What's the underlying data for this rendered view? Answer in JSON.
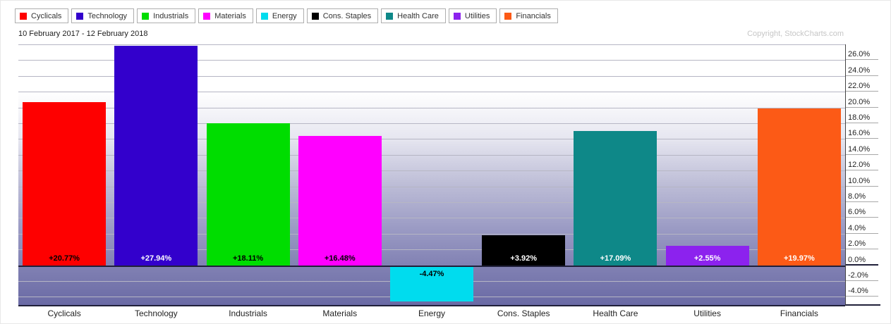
{
  "header": {
    "date_range": "10 February 2017 - 12 February 2018",
    "copyright": "Copyright, StockCharts.com"
  },
  "legend": {
    "position": "top",
    "items": [
      {
        "label": "Cyclicals",
        "color": "#fe0000"
      },
      {
        "label": "Technology",
        "color": "#3300cc"
      },
      {
        "label": "Industrials",
        "color": "#00dd00"
      },
      {
        "label": "Materials",
        "color": "#ff00ff"
      },
      {
        "label": "Energy",
        "color": "#00dcee"
      },
      {
        "label": "Cons. Staples",
        "color": "#000000"
      },
      {
        "label": "Health Care",
        "color": "#0e8888"
      },
      {
        "label": "Utilities",
        "color": "#8c22ee"
      },
      {
        "label": "Financials",
        "color": "#fc5a16"
      }
    ]
  },
  "chart_data": {
    "type": "bar",
    "title": "10 February 2017 - 12 February 2018",
    "categories": [
      "Cyclicals",
      "Technology",
      "Industrials",
      "Materials",
      "Energy",
      "Cons. Staples",
      "Health Care",
      "Utilities",
      "Financials"
    ],
    "values": [
      20.77,
      27.94,
      18.11,
      16.48,
      -4.47,
      3.92,
      17.09,
      2.55,
      19.97
    ],
    "bar_labels": [
      "+20.77%",
      "+27.94%",
      "+18.11%",
      "+16.48%",
      "-4.47%",
      "+3.92%",
      "+17.09%",
      "+2.55%",
      "+19.97%"
    ],
    "bar_colors": [
      "#fe0000",
      "#3300cc",
      "#00dd00",
      "#ff00ff",
      "#00dcee",
      "#000000",
      "#0e8888",
      "#8c22ee",
      "#fc5a16"
    ],
    "bar_label_text_colors": [
      "#000000",
      "#ffffff",
      "#000000",
      "#000000",
      "#000000",
      "#ffffff",
      "#ffffff",
      "#ffffff",
      "#ffffff"
    ],
    "xlabel": "",
    "ylabel": "",
    "ylim": [
      -4.95,
      28.0
    ],
    "grid": true,
    "legend_position": "top",
    "axis_side": "right",
    "y_ticks": [
      {
        "value": 26,
        "label": "26.0%"
      },
      {
        "value": 24,
        "label": "24.0%"
      },
      {
        "value": 22,
        "label": "22.0%"
      },
      {
        "value": 20,
        "label": "20.0%"
      },
      {
        "value": 18,
        "label": "18.0%"
      },
      {
        "value": 16,
        "label": "16.0%"
      },
      {
        "value": 14,
        "label": "14.0%"
      },
      {
        "value": 12,
        "label": "12.0%"
      },
      {
        "value": 10,
        "label": "10.0%"
      },
      {
        "value": 8,
        "label": "8.0%"
      },
      {
        "value": 6,
        "label": "6.0%"
      },
      {
        "value": 4,
        "label": "4.0%"
      },
      {
        "value": 2,
        "label": "2.0%"
      },
      {
        "value": 0,
        "label": "0.0%"
      },
      {
        "value": -2,
        "label": "-2.0%"
      },
      {
        "value": -4,
        "label": "-4.0%"
      }
    ]
  }
}
